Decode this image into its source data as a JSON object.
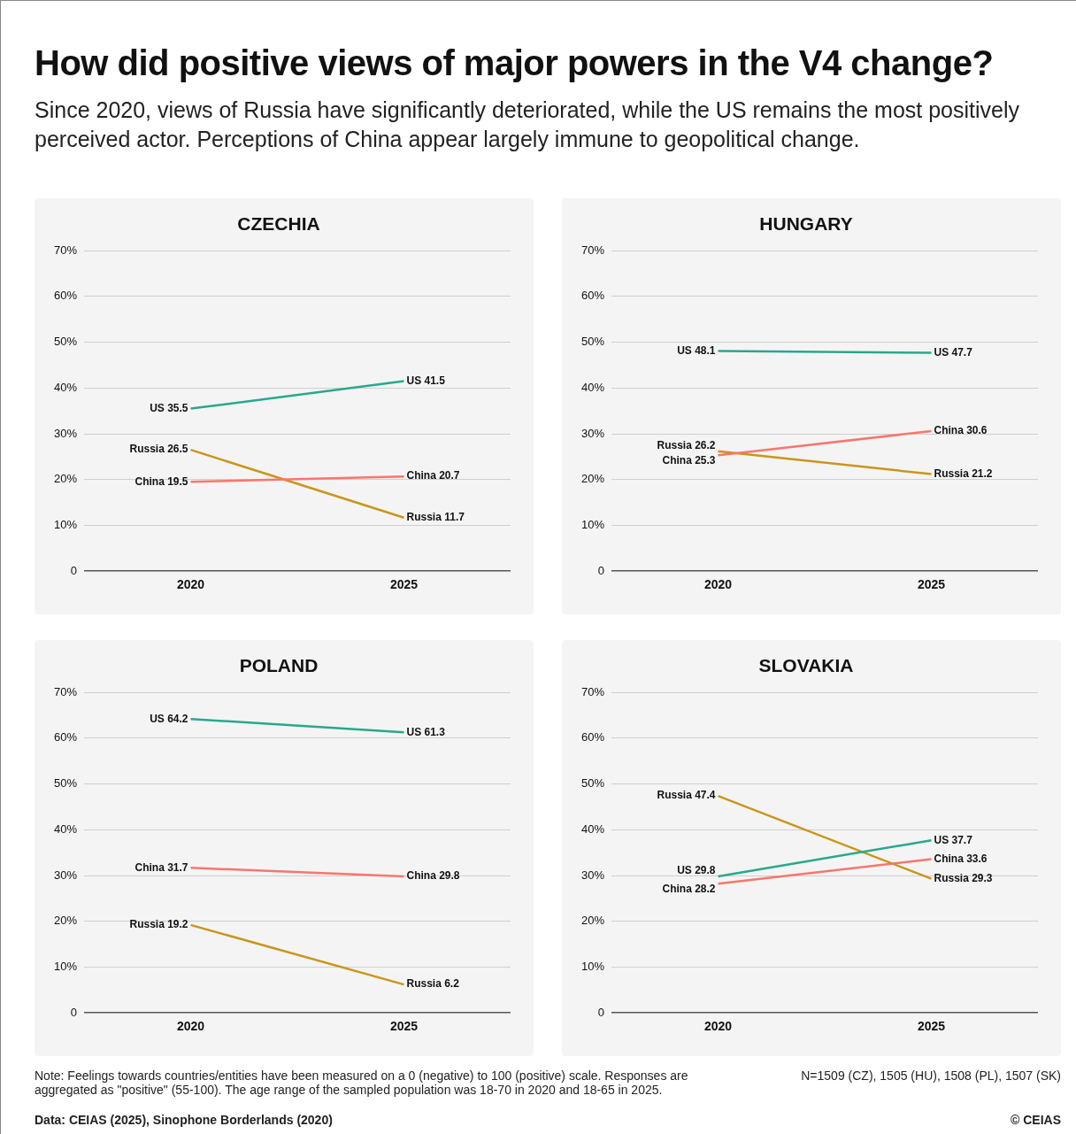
{
  "chart_data": [
    {
      "type": "other",
      "title": "How did positive views of major powers in the V4 change?",
      "subtitle": "Since 2020, views of Russia have significantly deteriorated, while the US remains the most positively perceived actor. Perceptions of China appear largely immune to geopolitical change."
    },
    {
      "type": "line",
      "title": "CZECHIA",
      "categories": [
        "2020",
        "2025"
      ],
      "ylim": [
        0,
        70
      ],
      "yticks": [
        {
          "value": 0,
          "label": "0"
        },
        {
          "value": 10,
          "label": "10%"
        },
        {
          "value": 20,
          "label": "20%"
        },
        {
          "value": 30,
          "label": "30%"
        },
        {
          "value": 40,
          "label": "40%"
        },
        {
          "value": 50,
          "label": "50%"
        },
        {
          "value": 60,
          "label": "60%"
        },
        {
          "value": 70,
          "label": "70%"
        }
      ],
      "grid": "y",
      "legend": false,
      "marker": "none",
      "line_style": "solid",
      "series": [
        {
          "color": "#27a98b",
          "values": [
            35.5,
            41.5
          ],
          "value_labels": [
            "US 35.5",
            "US 41.5"
          ]
        },
        {
          "color": "#f8766d",
          "values": [
            19.5,
            20.7
          ],
          "value_labels": [
            "China 19.5",
            "China 20.7"
          ]
        },
        {
          "color": "#c9961a",
          "values": [
            26.5,
            11.7
          ],
          "value_labels": [
            "Russia 26.5",
            "Russia 11.7"
          ]
        }
      ]
    },
    {
      "type": "line",
      "title": "HUNGARY",
      "categories": [
        "2020",
        "2025"
      ],
      "ylim": [
        0,
        70
      ],
      "yticks": [
        {
          "value": 0,
          "label": "0"
        },
        {
          "value": 10,
          "label": "10%"
        },
        {
          "value": 20,
          "label": "20%"
        },
        {
          "value": 30,
          "label": "30%"
        },
        {
          "value": 40,
          "label": "40%"
        },
        {
          "value": 50,
          "label": "50%"
        },
        {
          "value": 60,
          "label": "60%"
        },
        {
          "value": 70,
          "label": "70%"
        }
      ],
      "grid": "y",
      "legend": false,
      "marker": "none",
      "line_style": "solid",
      "series": [
        {
          "color": "#27a98b",
          "values": [
            48.1,
            47.7
          ],
          "value_labels": [
            "US 48.1",
            "US 47.7"
          ]
        },
        {
          "color": "#f8766d",
          "values": [
            25.3,
            30.6
          ],
          "value_labels": [
            "China 25.3",
            "China 30.6"
          ]
        },
        {
          "color": "#c9961a",
          "values": [
            26.2,
            21.2
          ],
          "value_labels": [
            "Russia 26.2",
            "Russia 21.2"
          ]
        }
      ]
    },
    {
      "type": "line",
      "title": "POLAND",
      "categories": [
        "2020",
        "2025"
      ],
      "ylim": [
        0,
        70
      ],
      "yticks": [
        {
          "value": 0,
          "label": "0"
        },
        {
          "value": 10,
          "label": "10%"
        },
        {
          "value": 20,
          "label": "20%"
        },
        {
          "value": 30,
          "label": "30%"
        },
        {
          "value": 40,
          "label": "40%"
        },
        {
          "value": 50,
          "label": "50%"
        },
        {
          "value": 60,
          "label": "60%"
        },
        {
          "value": 70,
          "label": "70%"
        }
      ],
      "grid": "y",
      "legend": false,
      "marker": "none",
      "line_style": "solid",
      "series": [
        {
          "color": "#27a98b",
          "values": [
            64.2,
            61.3
          ],
          "value_labels": [
            "US 64.2",
            "US 61.3"
          ]
        },
        {
          "color": "#f8766d",
          "values": [
            31.7,
            29.8
          ],
          "value_labels": [
            "China 31.7",
            "China 29.8"
          ]
        },
        {
          "color": "#c9961a",
          "values": [
            19.2,
            6.2
          ],
          "value_labels": [
            "Russia 19.2",
            "Russia 6.2"
          ]
        }
      ]
    },
    {
      "type": "line",
      "title": "SLOVAKIA",
      "categories": [
        "2020",
        "2025"
      ],
      "ylim": [
        0,
        70
      ],
      "yticks": [
        {
          "value": 0,
          "label": "0"
        },
        {
          "value": 10,
          "label": "10%"
        },
        {
          "value": 20,
          "label": "20%"
        },
        {
          "value": 30,
          "label": "30%"
        },
        {
          "value": 40,
          "label": "40%"
        },
        {
          "value": 50,
          "label": "50%"
        },
        {
          "value": 60,
          "label": "60%"
        },
        {
          "value": 70,
          "label": "70%"
        }
      ],
      "grid": "y",
      "legend": false,
      "marker": "none",
      "line_style": "solid",
      "series": [
        {
          "color": "#27a98b",
          "values": [
            29.8,
            37.7
          ],
          "value_labels": [
            "US 29.8",
            "US 37.7"
          ]
        },
        {
          "color": "#f8766d",
          "values": [
            28.2,
            33.6
          ],
          "value_labels": [
            "China 28.2",
            "China 33.6"
          ]
        },
        {
          "color": "#c9961a",
          "values": [
            47.4,
            29.3
          ],
          "value_labels": [
            "Russia 47.4",
            "Russia 29.3"
          ]
        }
      ]
    },
    {
      "type": "other",
      "annotations": [
        "Note: Feelings towards countries/entities have been measured on a 0 (negative) to 100 (positive) scale. Responses are aggregated as \"positive\" (55-100). The age range of the sampled population was 18-70 in 2020 and 18-65 in 2025.",
        "N=1509 (CZ), 1505 (HU), 1508 (PL), 1507 (SK)",
        "Data: CEIAS (2025), Sinophone Borderlands (2020)",
        "© CEIAS"
      ]
    }
  ]
}
